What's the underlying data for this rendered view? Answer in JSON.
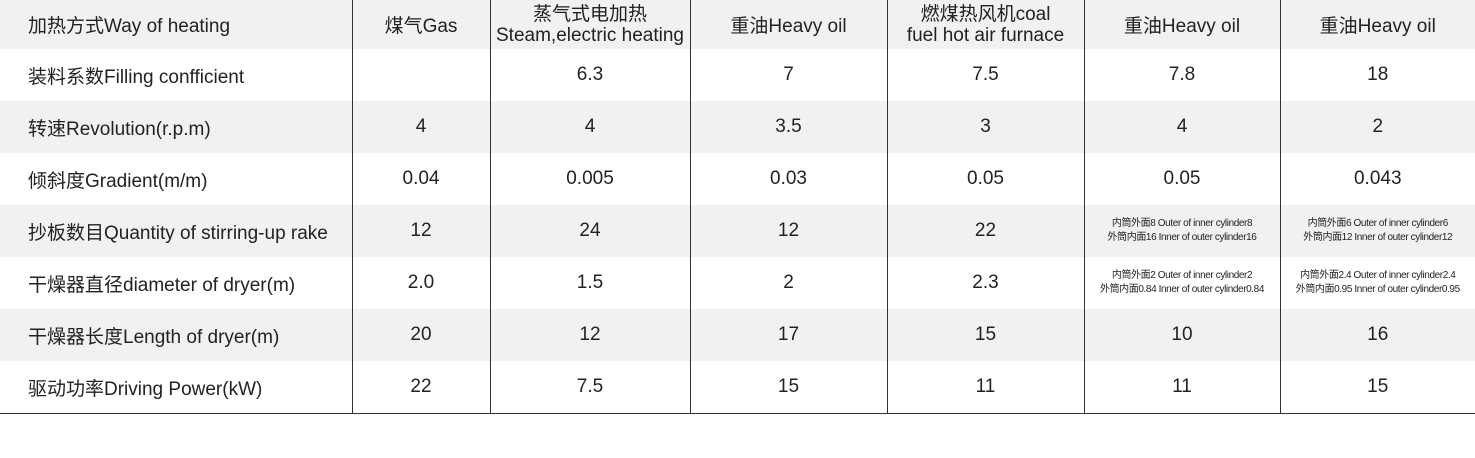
{
  "table": {
    "rows": [
      [
        "加热方式Way of heating",
        "煤气Gas",
        [
          "蒸气式电加热",
          "Steam,electric heating"
        ],
        "重油Heavy oil",
        [
          "燃煤热风机coal",
          "fuel hot air furnace"
        ],
        "重油Heavy oil",
        "重油Heavy oil"
      ],
      [
        "装料系数Filling confficient",
        null,
        "6.3",
        "7",
        "7.5",
        "7.8",
        "18"
      ],
      [
        "转速Revolution(r.p.m)",
        "4",
        "4",
        "3.5",
        "3",
        "4",
        "2"
      ],
      [
        "倾斜度Gradient(m/m)",
        "0.04",
        "0.005",
        "0.03",
        "0.05",
        "0.05",
        "0.043"
      ],
      [
        "抄板数目Quantity of stirring-up rake",
        "12",
        "24",
        "12",
        "22",
        [
          "内筒外面8 Outer of inner cylinder8",
          "外筒内面16 Inner of outer cylinder16"
        ],
        [
          "内筒外面6 Outer of inner cylinder6",
          "外筒内面12 Inner of outer cylinder12"
        ]
      ],
      [
        "干燥器直径diameter of dryer(m)",
        "2.0",
        "1.5",
        "2",
        "2.3",
        [
          "内筒外面2 Outer of inner cylinder2",
          "外筒内面0.84 Inner of outer cylinder0.84"
        ],
        [
          "内筒外面2.4 Outer of inner cylinder2.4",
          "外筒内面0.95 Inner of outer cylinder0.95"
        ]
      ],
      [
        "干燥器长度Length of dryer(m)",
        "20",
        "12",
        "17",
        "15",
        "10",
        "16"
      ],
      [
        "驱动功率Driving Power(kW)",
        "22",
        "7.5",
        "15",
        "11",
        "11",
        "15"
      ]
    ]
  }
}
